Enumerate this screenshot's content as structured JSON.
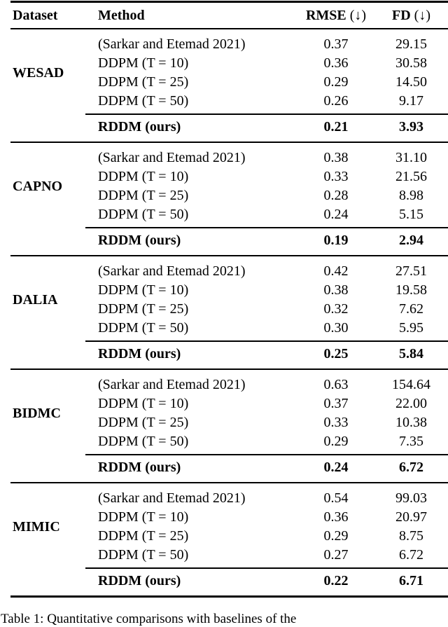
{
  "table": {
    "header": {
      "dataset": "Dataset",
      "method": "Method",
      "rmse": "RMSE",
      "rmse_suffix": "(↓)",
      "fd": "FD",
      "fd_suffix": "(↓)"
    },
    "groups": [
      {
        "dataset": "WESAD",
        "rows": [
          {
            "method": "(Sarkar and Etemad 2021)",
            "rmse": "0.37",
            "fd": "29.15"
          },
          {
            "method": "DDPM (T = 10)",
            "rmse": "0.36",
            "fd": "30.58"
          },
          {
            "method": "DDPM (T = 25)",
            "rmse": "0.29",
            "fd": "14.50"
          },
          {
            "method": "DDPM (T = 50)",
            "rmse": "0.26",
            "fd": "9.17"
          }
        ],
        "ours": {
          "method": "RDDM (ours)",
          "rmse": "0.21",
          "fd": "3.93"
        }
      },
      {
        "dataset": "CAPNO",
        "rows": [
          {
            "method": "(Sarkar and Etemad 2021)",
            "rmse": "0.38",
            "fd": "31.10"
          },
          {
            "method": "DDPM (T = 10)",
            "rmse": "0.33",
            "fd": "21.56"
          },
          {
            "method": "DDPM (T = 25)",
            "rmse": "0.28",
            "fd": "8.98"
          },
          {
            "method": "DDPM (T = 50)",
            "rmse": "0.24",
            "fd": "5.15"
          }
        ],
        "ours": {
          "method": "RDDM (ours)",
          "rmse": "0.19",
          "fd": "2.94"
        }
      },
      {
        "dataset": "DALIA",
        "rows": [
          {
            "method": "(Sarkar and Etemad 2021)",
            "rmse": "0.42",
            "fd": "27.51"
          },
          {
            "method": "DDPM (T = 10)",
            "rmse": "0.38",
            "fd": "19.58"
          },
          {
            "method": "DDPM (T = 25)",
            "rmse": "0.32",
            "fd": "7.62"
          },
          {
            "method": "DDPM (T = 50)",
            "rmse": "0.30",
            "fd": "5.95"
          }
        ],
        "ours": {
          "method": "RDDM (ours)",
          "rmse": "0.25",
          "fd": "5.84"
        }
      },
      {
        "dataset": "BIDMC",
        "rows": [
          {
            "method": "(Sarkar and Etemad 2021)",
            "rmse": "0.63",
            "fd": "154.64"
          },
          {
            "method": "DDPM (T = 10)",
            "rmse": "0.37",
            "fd": "22.00"
          },
          {
            "method": "DDPM (T = 25)",
            "rmse": "0.33",
            "fd": "10.38"
          },
          {
            "method": "DDPM (T = 50)",
            "rmse": "0.29",
            "fd": "7.35"
          }
        ],
        "ours": {
          "method": "RDDM (ours)",
          "rmse": "0.24",
          "fd": "6.72"
        }
      },
      {
        "dataset": "MIMIC",
        "rows": [
          {
            "method": "(Sarkar and Etemad 2021)",
            "rmse": "0.54",
            "fd": "99.03"
          },
          {
            "method": "DDPM (T = 10)",
            "rmse": "0.36",
            "fd": "20.97"
          },
          {
            "method": "DDPM (T = 25)",
            "rmse": "0.29",
            "fd": "8.75"
          },
          {
            "method": "DDPM (T = 50)",
            "rmse": "0.27",
            "fd": "6.72"
          }
        ],
        "ours": {
          "method": "RDDM (ours)",
          "rmse": "0.22",
          "fd": "6.71"
        }
      }
    ]
  },
  "caption": "Table 1: Quantitative comparisons with baselines of the"
}
